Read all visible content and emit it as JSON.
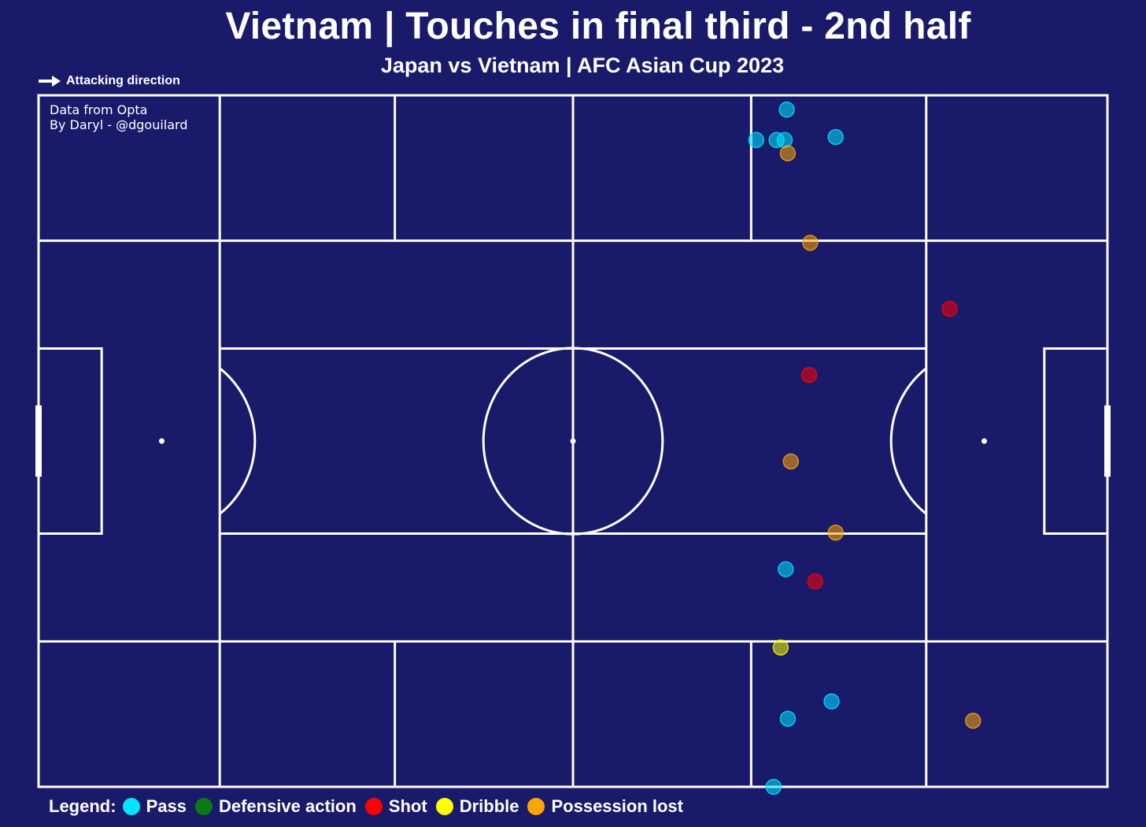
{
  "header": {
    "title": "Vietnam | Touches in final third - 2nd half",
    "subtitle": "Japan vs Vietnam | AFC Asian Cup 2023"
  },
  "attacking_direction": {
    "label": "Attacking direction",
    "icon": "arrow-right-icon"
  },
  "credits": {
    "line1": "Data from Opta",
    "line2": "By Daryl - @dgouilard"
  },
  "colors": {
    "background": "#1a1a6b",
    "lines": "#ffffff",
    "pass": "#00e5ff",
    "defensive_action": "#0b7a12",
    "shot": "#ff0000",
    "dribble": "#ffff00",
    "possession_lost": "#ffa500"
  },
  "legend": {
    "label": "Legend:",
    "items": [
      {
        "name": "Pass",
        "key": "pass"
      },
      {
        "name": "Defensive action",
        "key": "defensive_action"
      },
      {
        "name": "Shot",
        "key": "shot"
      },
      {
        "name": "Dribble",
        "key": "dribble"
      },
      {
        "name": "Possession lost",
        "key": "possession_lost"
      }
    ]
  },
  "chart_data": {
    "type": "scatter",
    "title": "Vietnam | Touches in final third - 2nd half",
    "subtitle": "Japan vs Vietnam | AFC Asian Cup 2023",
    "pitch": {
      "length": 105,
      "width": 68,
      "orientation": "horizontal",
      "attacking_direction": "right",
      "zone_grid": true
    },
    "xlim": [
      0,
      105
    ],
    "ylim": [
      0,
      68
    ],
    "legend_placement": "bottom-left",
    "series": [
      {
        "name": "Pass",
        "key": "pass",
        "points": [
          {
            "x": 73.5,
            "y": 66.6
          },
          {
            "x": 70.5,
            "y": 63.6
          },
          {
            "x": 72.5,
            "y": 63.6
          },
          {
            "x": 73.3,
            "y": 63.6
          },
          {
            "x": 78.3,
            "y": 63.9
          },
          {
            "x": 73.4,
            "y": 21.4
          },
          {
            "x": 77.9,
            "y": 8.4
          },
          {
            "x": 73.6,
            "y": 6.7
          },
          {
            "x": 72.2,
            "y": 0.0
          }
        ]
      },
      {
        "name": "Defensive action",
        "key": "defensive_action",
        "points": []
      },
      {
        "name": "Shot",
        "key": "shot",
        "points": [
          {
            "x": 89.5,
            "y": 47.0
          },
          {
            "x": 75.7,
            "y": 40.5
          },
          {
            "x": 76.3,
            "y": 20.2
          }
        ]
      },
      {
        "name": "Dribble",
        "key": "dribble",
        "points": [
          {
            "x": 72.9,
            "y": 13.7
          }
        ]
      },
      {
        "name": "Possession lost",
        "key": "possession_lost",
        "points": [
          {
            "x": 73.6,
            "y": 62.3
          },
          {
            "x": 75.8,
            "y": 53.5
          },
          {
            "x": 73.9,
            "y": 32.0
          },
          {
            "x": 78.3,
            "y": 25.0
          },
          {
            "x": 91.8,
            "y": 6.5
          }
        ]
      }
    ]
  }
}
